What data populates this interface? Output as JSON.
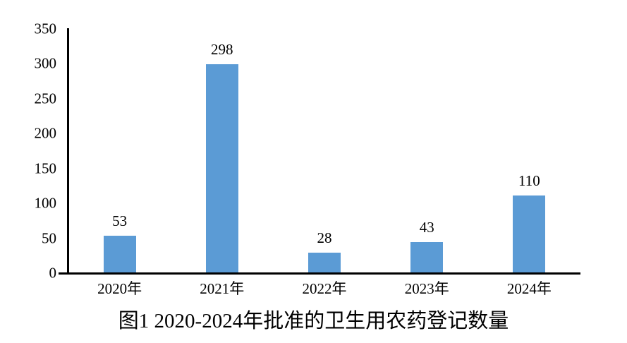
{
  "chart_data": {
    "type": "bar",
    "title": "图1 2020-2024年批准的卫生用农药登记数量",
    "categories": [
      "2020年",
      "2021年",
      "2022年",
      "2023年",
      "2024年"
    ],
    "values": [
      53,
      298,
      28,
      43,
      110
    ],
    "xlabel": "",
    "ylabel": "",
    "ylim": [
      0,
      350
    ],
    "yticks": [
      0,
      50,
      100,
      150,
      200,
      250,
      300,
      350
    ],
    "grid": "off",
    "legend": "none",
    "bar_color": "#5B9BD5",
    "axis_color": "#000000",
    "text_color": "#000000",
    "value_labels_shown": true
  }
}
